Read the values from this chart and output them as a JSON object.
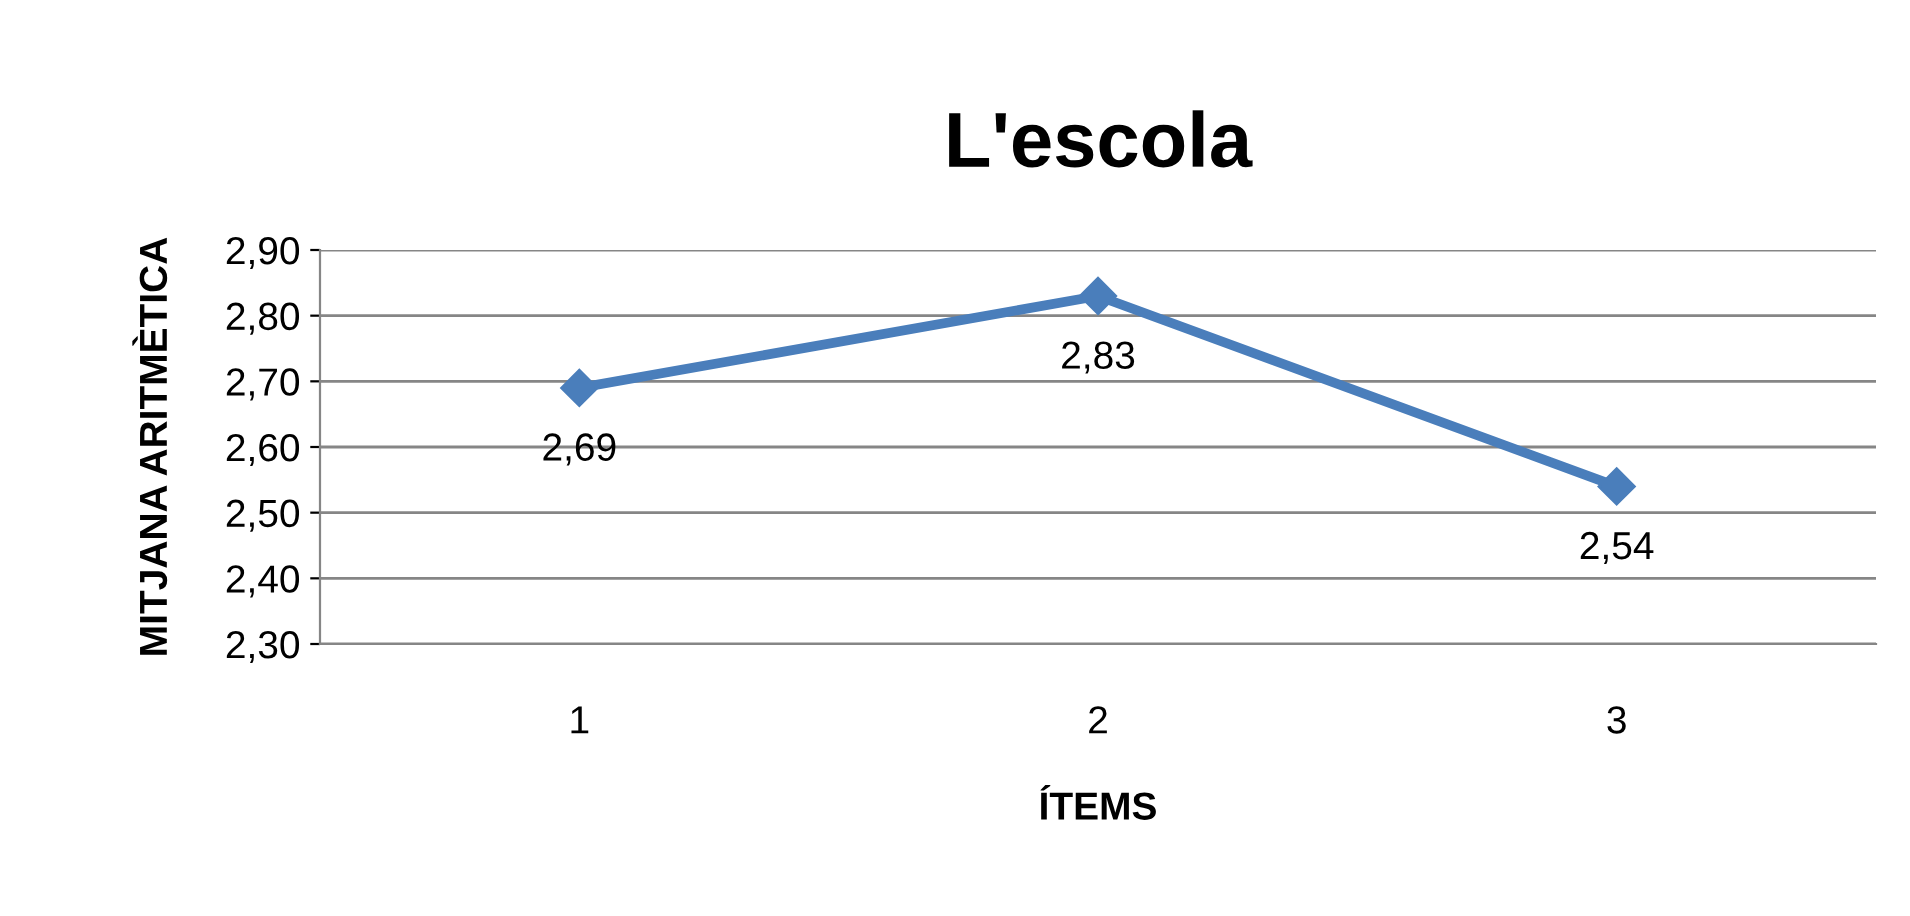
{
  "chart_data": {
    "type": "line",
    "title": "L'escola",
    "xlabel": "ÍTEMS",
    "ylabel": "MITJANA ARITMÈTICA",
    "categories": [
      "1",
      "2",
      "3"
    ],
    "series": [
      {
        "color": "#4a7ebb",
        "values": [
          2.69,
          2.83,
          2.54
        ],
        "value_labels": [
          "2,69",
          "2,83",
          "2,54"
        ]
      }
    ],
    "ylim": [
      2.3,
      2.9
    ],
    "yticks": [
      {
        "value": 2.3,
        "label": "2,30"
      },
      {
        "value": 2.4,
        "label": "2,40"
      },
      {
        "value": 2.5,
        "label": "2,50"
      },
      {
        "value": 2.6,
        "label": "2,60"
      },
      {
        "value": 2.7,
        "label": "2,70"
      },
      {
        "value": 2.8,
        "label": "2,80"
      },
      {
        "value": 2.9,
        "label": "2,90"
      }
    ],
    "grid": "y",
    "marker": "diamond",
    "line_style": "solid",
    "legend": false
  }
}
